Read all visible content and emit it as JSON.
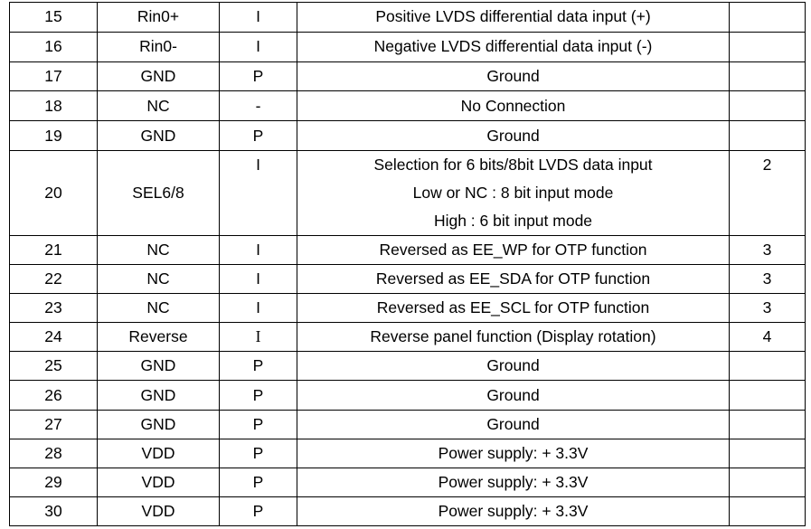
{
  "table": {
    "rows": [
      {
        "pin": "15",
        "symbol": "Rin0+",
        "io": "I",
        "description": "Positive LVDS differential data input (+)"
      },
      {
        "pin": "16",
        "symbol": "Rin0-",
        "io": "I",
        "description": "Negative LVDS differential data input (-)"
      },
      {
        "pin": "17",
        "symbol": "GND",
        "io": "P",
        "description": "Ground"
      },
      {
        "pin": "18",
        "symbol": "NC",
        "io": "-",
        "description": "No Connection"
      },
      {
        "pin": "19",
        "symbol": "GND",
        "io": "P",
        "description": "Ground"
      },
      {
        "pin": "20",
        "symbol": "SEL6/8",
        "io": "I",
        "description": [
          "Selection for 6 bits/8bit LVDS data input",
          "Low or NC : 8 bit input mode",
          "High : 6 bit input mode"
        ],
        "note": "2"
      },
      {
        "pin": "21",
        "symbol": "NC",
        "io": "I",
        "description": "Reversed as EE_WP for OTP function",
        "note": "3"
      },
      {
        "pin": "22",
        "symbol": "NC",
        "io": "I",
        "description": "Reversed as EE_SDA for OTP function",
        "note": "3"
      },
      {
        "pin": "23",
        "symbol": "NC",
        "io": "I",
        "description": "Reversed as EE_SCL for OTP function",
        "note": "3"
      },
      {
        "pin": "24",
        "symbol": "Reverse",
        "io": "I",
        "description": "Reverse panel function (Display rotation)",
        "note": "4"
      },
      {
        "pin": "25",
        "symbol": "GND",
        "io": "P",
        "description": "Ground"
      },
      {
        "pin": "26",
        "symbol": "GND",
        "io": "P",
        "description": "Ground"
      },
      {
        "pin": "27",
        "symbol": "GND",
        "io": "P",
        "description": "Ground"
      },
      {
        "pin": "28",
        "symbol": "VDD",
        "io": "P",
        "description": "Power supply: + 3.3V"
      },
      {
        "pin": "29",
        "symbol": "VDD",
        "io": "P",
        "description": "Power supply: + 3.3V"
      },
      {
        "pin": "30",
        "symbol": "VDD",
        "io": "P",
        "description": "Power supply: + 3.3V"
      }
    ]
  }
}
